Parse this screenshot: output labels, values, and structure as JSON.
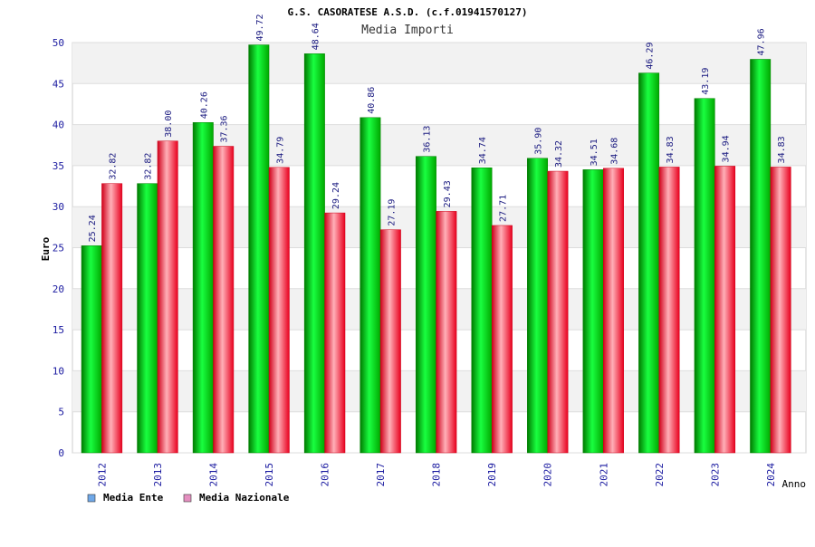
{
  "chart_data": {
    "type": "bar",
    "title": "G.S. CASORATESE A.S.D. (c.f.01941570127)",
    "subtitle": "Media Importi",
    "xlabel": "Anno",
    "ylabel": "Euro",
    "ylim": [
      0,
      50
    ],
    "yticks": [
      "0",
      "5",
      "10",
      "15",
      "20",
      "25",
      "30",
      "35",
      "40",
      "45",
      "50"
    ],
    "grid": true,
    "legend_position": "bottom-left",
    "categories": [
      "2012",
      "2013",
      "2014",
      "2015",
      "2016",
      "2017",
      "2018",
      "2019",
      "2020",
      "2021",
      "2022",
      "2023",
      "2024"
    ],
    "series": [
      {
        "name": "Media Ente",
        "values": [
          25.24,
          32.82,
          40.26,
          49.72,
          48.64,
          40.86,
          36.13,
          34.74,
          35.9,
          34.51,
          46.29,
          43.19,
          47.96
        ],
        "labels": [
          "25.24",
          "32.82",
          "40.26",
          "49.72",
          "48.64",
          "40.86",
          "36.13",
          "34.74",
          "35.90",
          "34.51",
          "46.29",
          "43.19",
          "47.96"
        ],
        "color": "#00c000",
        "legend_color": "#6fa8e8"
      },
      {
        "name": "Media Nazionale",
        "values": [
          32.82,
          38.0,
          37.36,
          34.79,
          29.24,
          27.19,
          29.43,
          27.71,
          34.32,
          34.68,
          34.83,
          34.94,
          34.83
        ],
        "labels": [
          "32.82",
          "38.00",
          "37.36",
          "34.79",
          "29.24",
          "27.19",
          "29.43",
          "27.71",
          "34.32",
          "34.68",
          "34.83",
          "34.94",
          "34.83"
        ],
        "color": "#ff2030",
        "legend_color": "#e58fc0"
      }
    ]
  }
}
